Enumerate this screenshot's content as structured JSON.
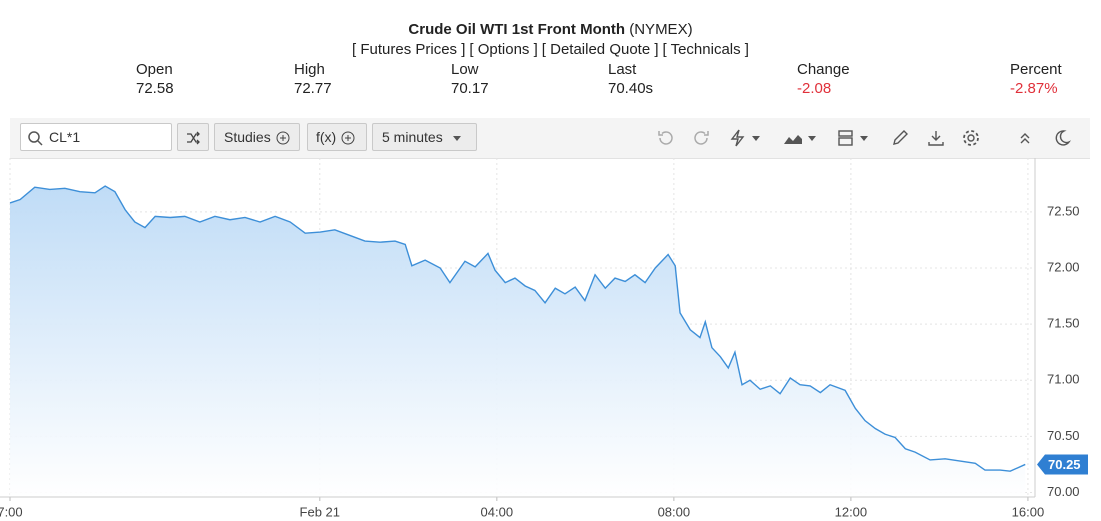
{
  "header": {
    "title": "Crude Oil WTI 1st Front Month",
    "exchange": "(NYMEX)",
    "links": [
      "[ Futures Prices ]",
      "[ Options ]",
      "[ Detailed Quote ]",
      "[ Technicals ]"
    ],
    "stats": [
      {
        "label": "Open",
        "value": "72.58"
      },
      {
        "label": "High",
        "value": "72.77"
      },
      {
        "label": "Low",
        "value": "70.17"
      },
      {
        "label": "Last",
        "value": "70.40s"
      },
      {
        "label": "Change",
        "value": "-2.08"
      },
      {
        "label": "Percent",
        "value": "-2.87%"
      }
    ]
  },
  "toolbar": {
    "symbol": "CL*1",
    "studies": "Studies",
    "function": "f(x)",
    "interval": "5 minutes"
  },
  "chart_data": {
    "type": "area",
    "color": "#3d8fd8",
    "grid": true,
    "x": [
      0,
      0.23,
      0.56,
      0.9,
      1.24,
      1.58,
      1.92,
      2.15,
      2.37,
      2.6,
      2.82,
      3.05,
      3.28,
      3.62,
      3.95,
      4.29,
      4.63,
      4.97,
      5.31,
      5.65,
      5.99,
      6.33,
      6.67,
      7.01,
      7.34,
      7.68,
      8.02,
      8.36,
      8.7,
      8.93,
      9.08,
      9.38,
      9.72,
      9.94,
      10.28,
      10.51,
      10.8,
      10.96,
      11.19,
      11.41,
      11.64,
      11.86,
      12.09,
      12.32,
      12.54,
      12.77,
      12.99,
      13.22,
      13.45,
      13.67,
      13.9,
      14.12,
      14.35,
      14.58,
      14.87,
      15.03,
      15.14,
      15.37,
      15.59,
      15.71,
      15.86,
      16.05,
      16.23,
      16.38,
      16.54,
      16.72,
      16.95,
      17.18,
      17.4,
      17.63,
      17.85,
      18.08,
      18.31,
      18.53,
      18.87,
      19.1,
      19.32,
      19.55,
      19.77,
      20.0,
      20.23,
      20.45,
      20.79,
      21.13,
      21.47,
      21.81,
      22.03,
      22.37,
      22.6,
      22.94
    ],
    "values": [
      72.58,
      72.61,
      72.72,
      72.7,
      72.71,
      72.68,
      72.67,
      72.73,
      72.68,
      72.52,
      72.41,
      72.36,
      72.46,
      72.45,
      72.46,
      72.41,
      72.46,
      72.43,
      72.45,
      72.41,
      72.46,
      72.41,
      72.31,
      72.32,
      72.34,
      72.29,
      72.24,
      72.23,
      72.24,
      72.21,
      72.02,
      72.07,
      72.0,
      71.87,
      72.06,
      72.01,
      72.13,
      71.98,
      71.87,
      71.91,
      71.84,
      71.8,
      71.69,
      71.82,
      71.77,
      71.83,
      71.71,
      71.94,
      71.82,
      71.91,
      71.88,
      71.94,
      71.87,
      72.0,
      72.12,
      72.02,
      71.6,
      71.45,
      71.38,
      71.52,
      71.29,
      71.21,
      71.11,
      71.25,
      70.96,
      71.0,
      70.92,
      70.95,
      70.88,
      71.02,
      70.96,
      70.95,
      70.89,
      70.96,
      70.91,
      70.75,
      70.64,
      70.57,
      70.52,
      70.49,
      70.39,
      70.36,
      70.29,
      70.3,
      70.28,
      70.26,
      70.2,
      70.2,
      70.19,
      70.25
    ],
    "xlim": [
      0,
      23.16
    ],
    "ylim": [
      69.96,
      72.98
    ],
    "xticks": [
      {
        "value": 0,
        "label": "7:00"
      },
      {
        "value": 7,
        "label": "Feb 21"
      },
      {
        "value": 11,
        "label": "04:00"
      },
      {
        "value": 15,
        "label": "08:00"
      },
      {
        "value": 19,
        "label": "12:00"
      },
      {
        "value": 23,
        "label": "16:00"
      }
    ],
    "yticks": [
      {
        "value": 70,
        "label": "70.00"
      },
      {
        "value": 70.5,
        "label": "70.50"
      },
      {
        "value": 71,
        "label": "71.00"
      },
      {
        "value": 71.5,
        "label": "71.50"
      },
      {
        "value": 72,
        "label": "72.00"
      },
      {
        "value": 72.5,
        "label": "72.50"
      }
    ]
  }
}
